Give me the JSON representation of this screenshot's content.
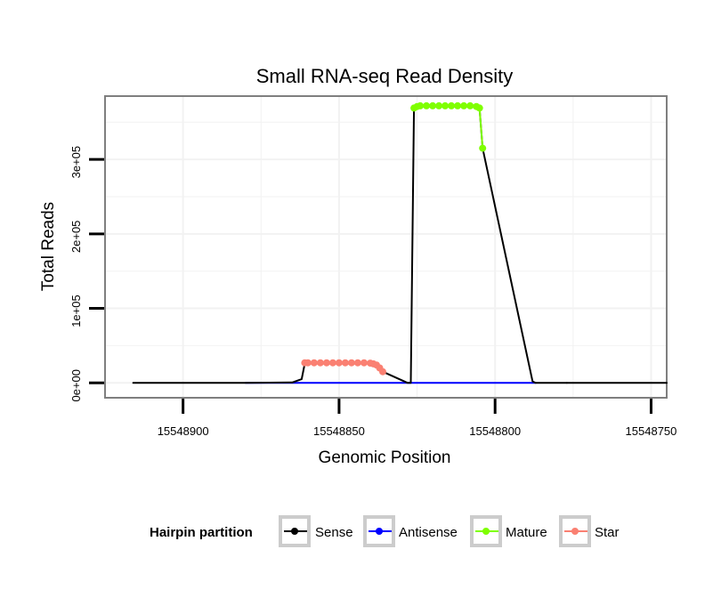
{
  "chart_data": {
    "type": "line",
    "title": "Small RNA-seq Read Density",
    "xlabel": "Genomic Position",
    "ylabel": "Total Reads",
    "x_reversed": true,
    "xlim": [
      15548925,
      15548745
    ],
    "ylim": [
      -20000,
      385000
    ],
    "x_ticks": [
      15548900,
      15548850,
      15548800,
      15548750
    ],
    "x_tick_labels": [
      "15548900",
      "15548850",
      "15548800",
      "15548750"
    ],
    "y_ticks": [
      0,
      100000,
      200000,
      300000
    ],
    "y_tick_labels": [
      "0e+00",
      "1e+05",
      "2e+05",
      "3e+05"
    ],
    "grid": true,
    "legend_position": "bottom",
    "legend": {
      "title": "Hairpin partition",
      "items": [
        {
          "label": "Sense",
          "color": "#000000"
        },
        {
          "label": "Antisense",
          "color": "#0000ff"
        },
        {
          "label": "Mature",
          "color": "#7fff00"
        },
        {
          "label": "Star",
          "color": "#fa8072"
        }
      ]
    },
    "series": [
      {
        "name": "Sense",
        "color": "#000000",
        "x": [
          15548916,
          15548880,
          15548865,
          15548862,
          15548861,
          15548838,
          15548837,
          15548836,
          15548828,
          15548827,
          15548826,
          15548806,
          15548805,
          15548804,
          15548788,
          15548787,
          15548786,
          15548777
        ],
        "y": [
          0,
          0,
          500,
          5000,
          26000,
          26000,
          20000,
          15000,
          0,
          0,
          371000,
          371000,
          369000,
          315000,
          2000,
          0,
          0,
          0
        ]
      },
      {
        "name": "Sense (tail)",
        "color": "#000000",
        "x": [
          15548777,
          15548745
        ],
        "y": [
          0,
          0
        ]
      },
      {
        "name": "Antisense",
        "color": "#0000ff",
        "x": [
          15548880,
          15548787
        ],
        "y": [
          0,
          0
        ]
      },
      {
        "name": "Mature",
        "color": "#7fff00",
        "x": [
          15548826,
          15548825,
          15548824,
          15548822,
          15548820,
          15548818,
          15548816,
          15548814,
          15548812,
          15548810,
          15548808,
          15548806,
          15548805,
          15548804
        ],
        "y": [
          369000,
          371000,
          372000,
          372000,
          372000,
          372000,
          372000,
          372000,
          372000,
          372000,
          372000,
          371000,
          369000,
          315000
        ]
      },
      {
        "name": "Star",
        "color": "#fa8072",
        "x": [
          15548861,
          15548860,
          15548858,
          15548856,
          15548854,
          15548852,
          15548850,
          15548848,
          15548846,
          15548844,
          15548842,
          15548840,
          15548839,
          15548838,
          15548837,
          15548836
        ],
        "y": [
          27000,
          27000,
          27000,
          27000,
          27000,
          27000,
          27000,
          27000,
          27000,
          27000,
          27000,
          26500,
          25500,
          24000,
          20000,
          15000
        ]
      }
    ]
  }
}
